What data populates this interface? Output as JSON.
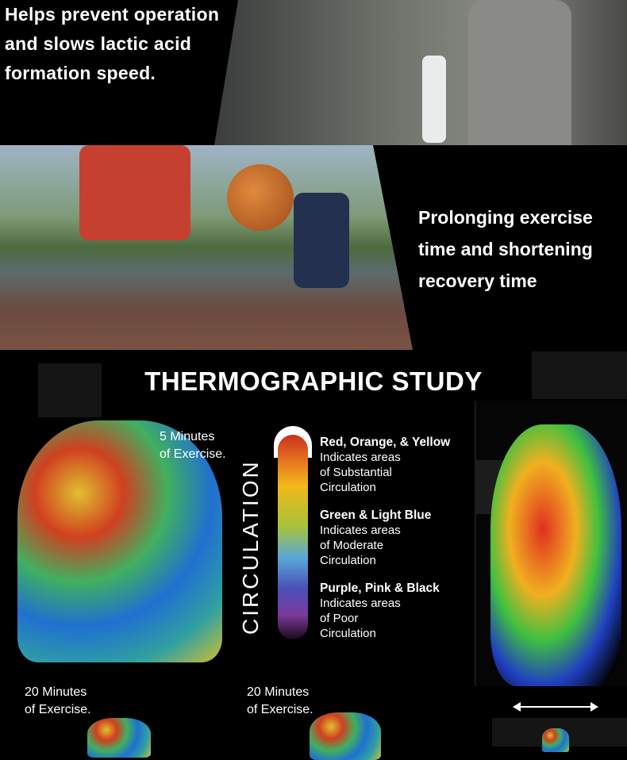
{
  "top_section": {
    "lines": [
      "Helps prevent operation",
      "and slows lactic acid",
      "formation speed."
    ]
  },
  "middle_section": {
    "lines": [
      "Prolonging exercise",
      "time and shortening",
      "recovery time"
    ]
  },
  "study": {
    "title": "THERMOGRAPHIC STUDY",
    "scale_label": "CIRCULATION",
    "scale_colors": [
      "#c9301f",
      "#f2b91a",
      "#a6c33a",
      "#58a8d8",
      "#4a50b8",
      "#7a3a9a",
      "#1a0a1a"
    ],
    "legend": [
      {
        "heading": "Red, Orange, & Yellow",
        "lines": [
          "Indicates areas",
          "of Substantial",
          "Circulation"
        ]
      },
      {
        "heading": "Green & Light Blue",
        "lines": [
          "Indicates areas",
          "of Moderate",
          "Circulation"
        ]
      },
      {
        "heading": "Purple, Pink & Black",
        "lines": [
          "Indicates areas",
          "of Poor",
          "Circulation"
        ]
      }
    ],
    "captions": [
      {
        "lines": [
          "5 Minutes",
          "of Exercise."
        ]
      },
      {
        "lines": [
          "20 Minutes",
          "of Exercise."
        ]
      },
      {
        "lines": [
          "20 Minutes",
          "of Exercise."
        ]
      }
    ]
  }
}
